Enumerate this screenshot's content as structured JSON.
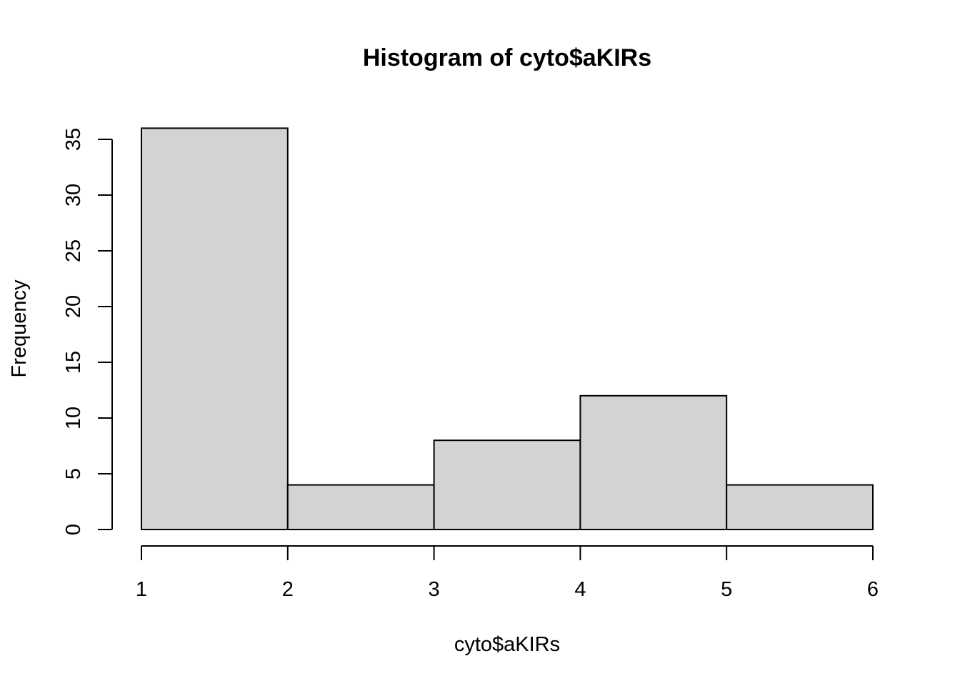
{
  "chart_data": {
    "type": "bar",
    "title": "Histogram of cyto$aKIRs",
    "xlabel": "cyto$aKIRs",
    "ylabel": "Frequency",
    "bins": [
      {
        "x0": 1,
        "x1": 2,
        "count": 36
      },
      {
        "x0": 2,
        "x1": 3,
        "count": 4
      },
      {
        "x0": 3,
        "x1": 4,
        "count": 8
      },
      {
        "x0": 4,
        "x1": 5,
        "count": 12
      },
      {
        "x0": 5,
        "x1": 6,
        "count": 4
      }
    ],
    "xlim": [
      1,
      6
    ],
    "ylim": [
      0,
      35
    ],
    "x_ticks": [
      1,
      2,
      3,
      4,
      5,
      6
    ],
    "y_ticks": [
      0,
      5,
      10,
      15,
      20,
      25,
      30,
      35
    ],
    "bar_color": "#d3d3d3",
    "grid": false,
    "legend": "none"
  }
}
